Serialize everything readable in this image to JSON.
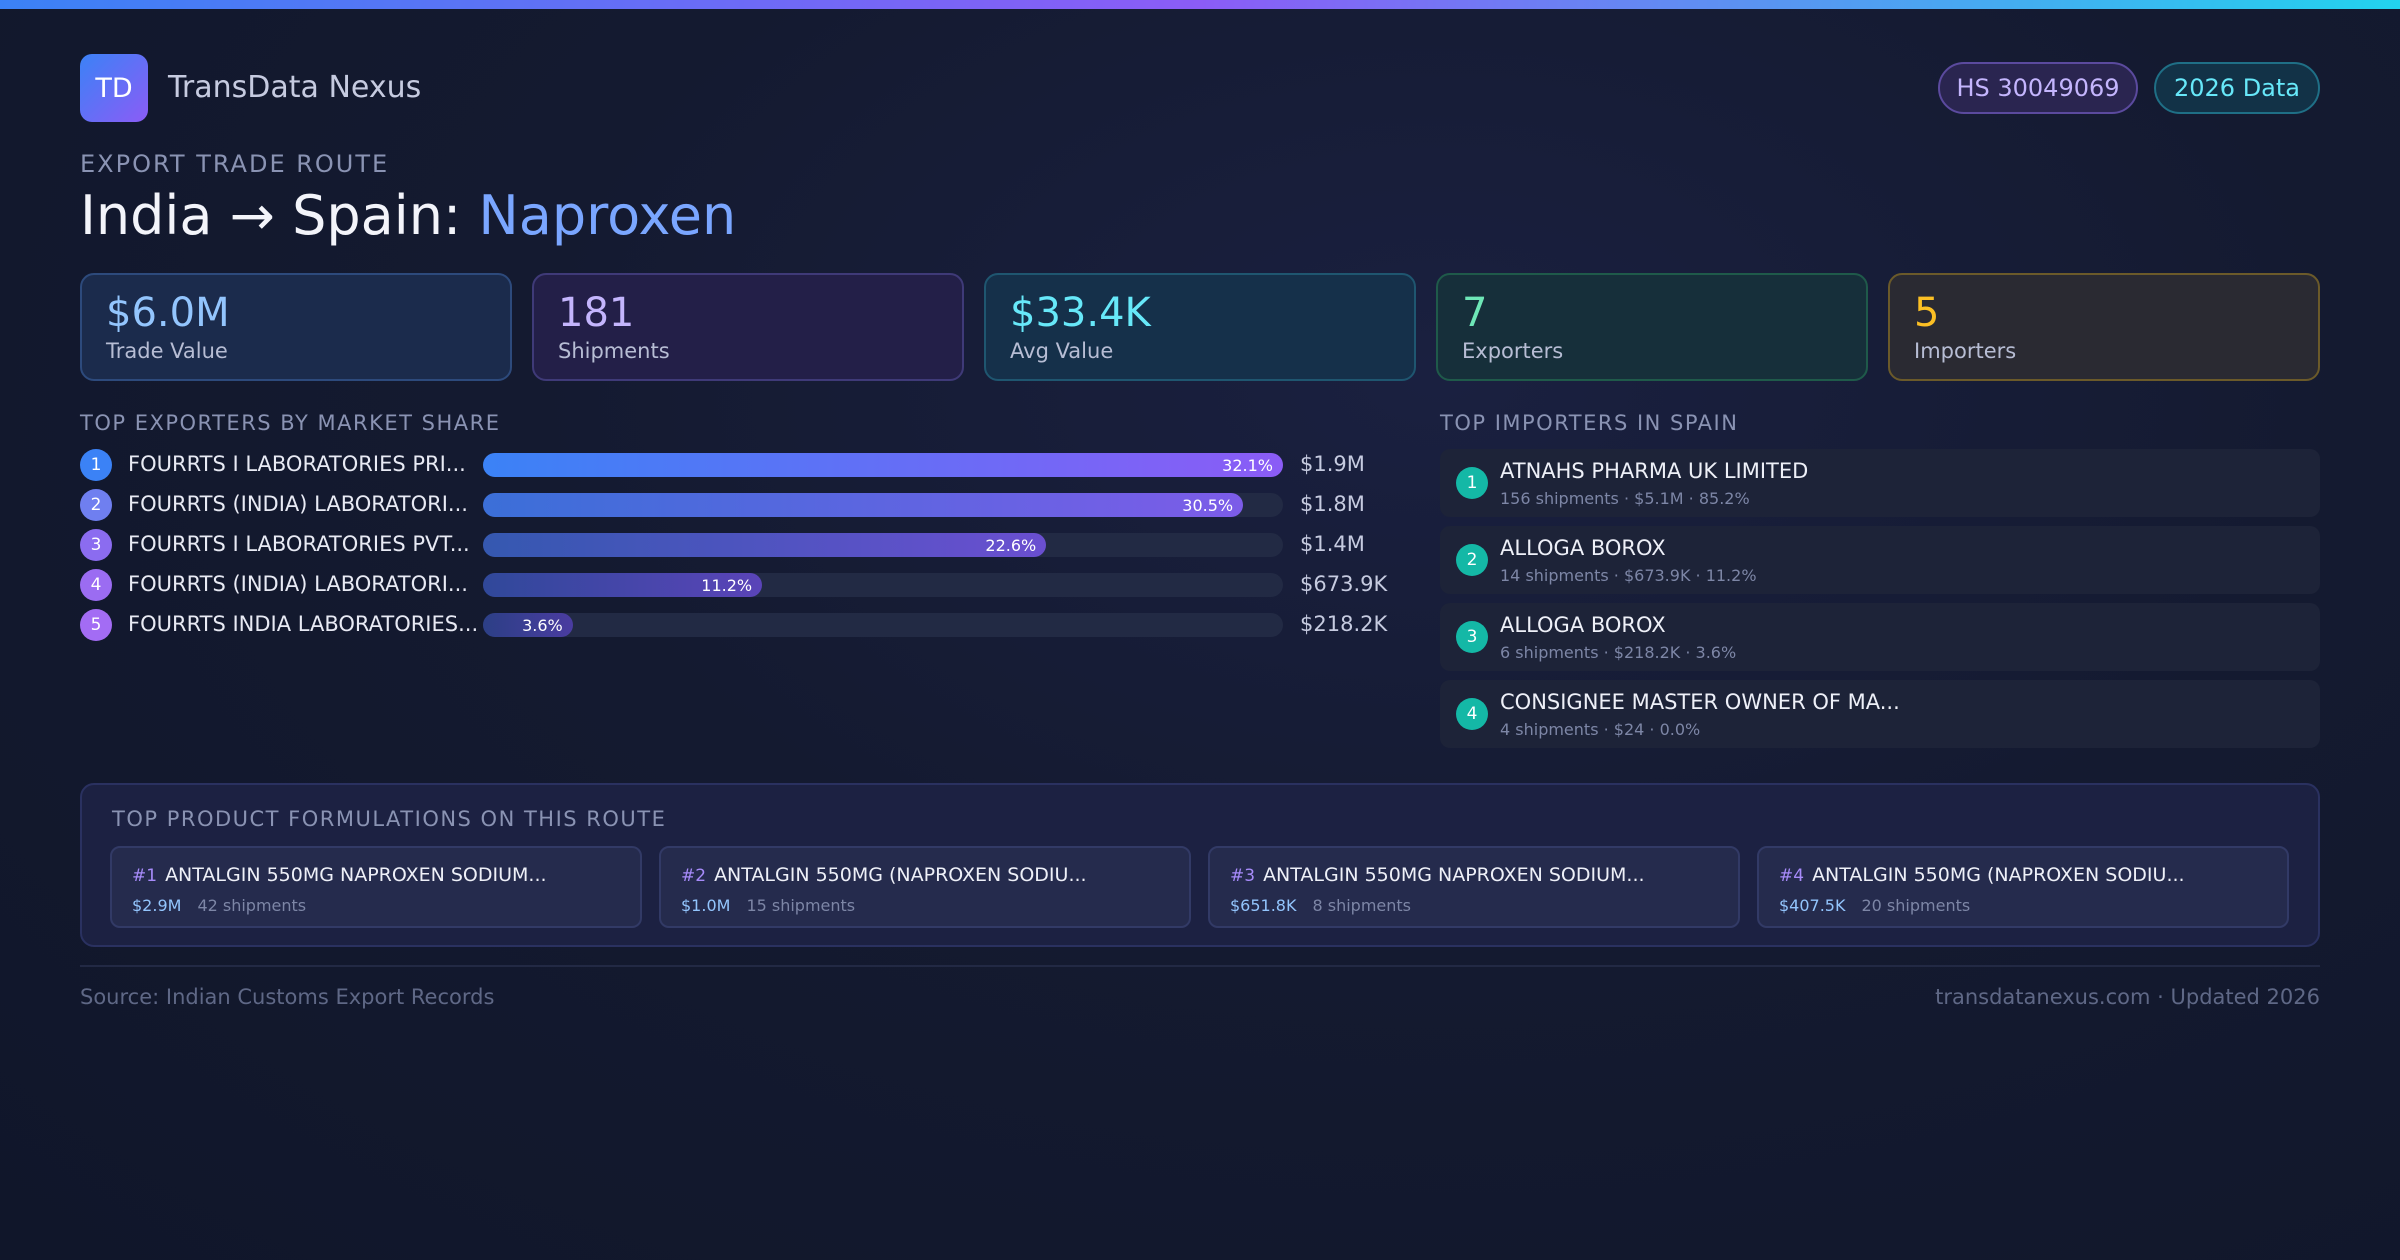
{
  "brand": {
    "logo": "TD",
    "name": "TransData Nexus"
  },
  "badges": {
    "hs_code": "HS 30049069",
    "year": "2026 Data"
  },
  "route": {
    "eyebrow": "EXPORT TRADE ROUTE",
    "title_prefix": "India → Spain: ",
    "product": "Naproxen"
  },
  "stats": [
    {
      "value": "$6.0M",
      "label": "Trade Value"
    },
    {
      "value": "181",
      "label": "Shipments"
    },
    {
      "value": "$33.4K",
      "label": "Avg Value"
    },
    {
      "value": "7",
      "label": "Exporters"
    },
    {
      "value": "5",
      "label": "Importers"
    }
  ],
  "exporters": {
    "heading": "TOP EXPORTERS BY MARKET SHARE",
    "items": [
      {
        "rank": "1",
        "name": "FOURRTS I LABORATORIES PRI...",
        "share": 32.1,
        "share_label": "32.1%",
        "value": "$1.9M"
      },
      {
        "rank": "2",
        "name": "FOURRTS (INDIA) LABORATORI...",
        "share": 30.5,
        "share_label": "30.5%",
        "value": "$1.8M"
      },
      {
        "rank": "3",
        "name": "FOURRTS I LABORATORIES PVT...",
        "share": 22.6,
        "share_label": "22.6%",
        "value": "$1.4M"
      },
      {
        "rank": "4",
        "name": "FOURRTS (INDIA) LABORATORI...",
        "share": 11.2,
        "share_label": "11.2%",
        "value": "$673.9K"
      },
      {
        "rank": "5",
        "name": "FOURRTS INDIA LABORATORIES...",
        "share": 3.6,
        "share_label": "3.6%",
        "value": "$218.2K"
      }
    ]
  },
  "importers": {
    "heading": "TOP IMPORTERS IN SPAIN",
    "items": [
      {
        "rank": "1",
        "name": "ATNAHS PHARMA UK LIMITED",
        "meta": "156 shipments · $5.1M · 85.2%"
      },
      {
        "rank": "2",
        "name": "ALLOGA BOROX",
        "meta": "14 shipments · $673.9K · 11.2%"
      },
      {
        "rank": "3",
        "name": "ALLOGA BOROX",
        "meta": "6 shipments · $218.2K · 3.6%"
      },
      {
        "rank": "4",
        "name": "CONSIGNEE MASTER OWNER OF MA...",
        "meta": "4 shipments · $24 · 0.0%"
      }
    ]
  },
  "formulations": {
    "heading": "TOP PRODUCT FORMULATIONS ON THIS ROUTE",
    "items": [
      {
        "rank": "#1",
        "name": "ANTALGIN 550MG NAPROXEN SODIUM...",
        "value": "$2.9M",
        "shipments": "42 shipments"
      },
      {
        "rank": "#2",
        "name": "ANTALGIN 550MG (NAPROXEN SODIU...",
        "value": "$1.0M",
        "shipments": "15 shipments"
      },
      {
        "rank": "#3",
        "name": "ANTALGIN 550MG NAPROXEN SODIUM...",
        "value": "$651.8K",
        "shipments": "8 shipments"
      },
      {
        "rank": "#4",
        "name": "ANTALGIN 550MG (NAPROXEN SODIU...",
        "value": "$407.5K",
        "shipments": "20 shipments"
      }
    ]
  },
  "footer": {
    "source": "Source: Indian Customs Export Records",
    "site": "transdatanexus.com · Updated 2026"
  }
}
